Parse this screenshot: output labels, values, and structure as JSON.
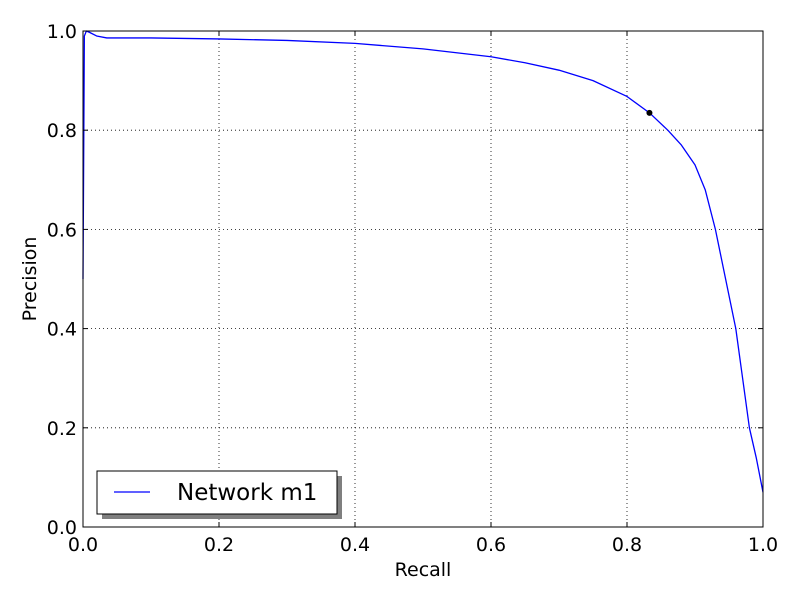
{
  "chart_data": {
    "type": "line",
    "title": "",
    "xlabel": "Recall",
    "ylabel": "Precision",
    "xlim": [
      0.0,
      1.0
    ],
    "ylim": [
      0.0,
      1.0
    ],
    "xticks": [
      "0.0",
      "0.2",
      "0.4",
      "0.6",
      "0.8",
      "1.0"
    ],
    "yticks": [
      "0.0",
      "0.2",
      "0.4",
      "0.6",
      "0.8",
      "1.0"
    ],
    "grid": true,
    "grid_style": "dotted",
    "legend_position": "lower-left",
    "series": [
      {
        "name": "Network m1",
        "color": "#0000ff",
        "x": [
          0.0,
          0.002,
          0.005,
          0.01,
          0.02,
          0.035,
          0.1,
          0.2,
          0.3,
          0.4,
          0.5,
          0.6,
          0.65,
          0.7,
          0.75,
          0.8,
          0.833,
          0.86,
          0.88,
          0.9,
          0.915,
          0.93,
          0.945,
          0.96,
          0.97,
          0.98,
          0.99,
          1.0
        ],
        "y": [
          0.5,
          0.99,
          1.0,
          0.997,
          0.99,
          0.986,
          0.986,
          0.984,
          0.981,
          0.975,
          0.964,
          0.948,
          0.936,
          0.921,
          0.9,
          0.868,
          0.835,
          0.8,
          0.77,
          0.73,
          0.68,
          0.6,
          0.5,
          0.4,
          0.3,
          0.2,
          0.14,
          0.07
        ]
      }
    ],
    "markers": [
      {
        "x": 0.833,
        "y": 0.835,
        "color": "#000000"
      }
    ]
  }
}
